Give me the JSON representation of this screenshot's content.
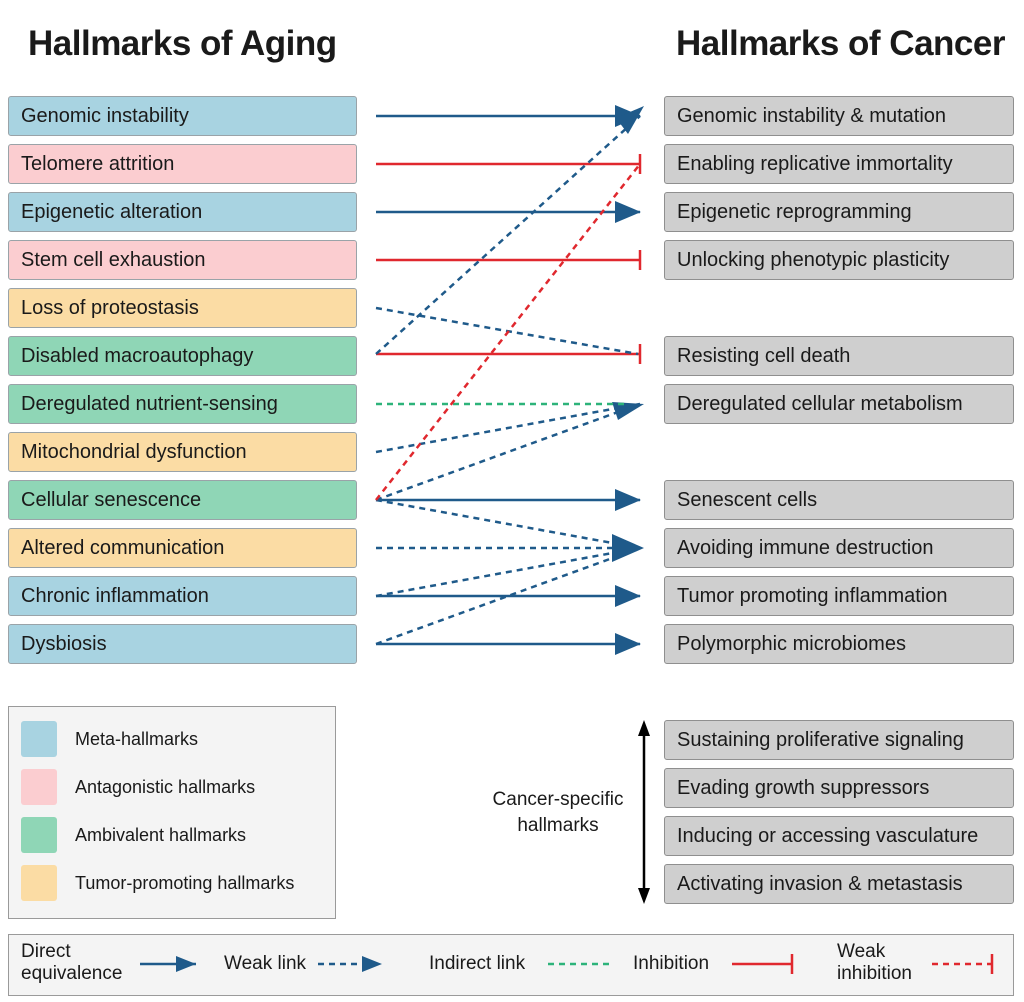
{
  "titles": {
    "aging": "Hallmarks of Aging",
    "cancer": "Hallmarks of Cancer"
  },
  "aging_hallmarks": [
    {
      "label": "Genomic instability",
      "category": "meta"
    },
    {
      "label": "Telomere attrition",
      "category": "antagonistic"
    },
    {
      "label": "Epigenetic alteration",
      "category": "meta"
    },
    {
      "label": "Stem cell exhaustion",
      "category": "antagonistic"
    },
    {
      "label": "Loss of proteostasis",
      "category": "tumor-promoting"
    },
    {
      "label": "Disabled macroautophagy",
      "category": "ambivalent"
    },
    {
      "label": "Deregulated nutrient-sensing",
      "category": "ambivalent"
    },
    {
      "label": "Mitochondrial dysfunction",
      "category": "tumor-promoting"
    },
    {
      "label": "Cellular senescence",
      "category": "ambivalent"
    },
    {
      "label": "Altered communication",
      "category": "tumor-promoting"
    },
    {
      "label": "Chronic inflammation",
      "category": "meta"
    },
    {
      "label": "Dysbiosis",
      "category": "meta"
    }
  ],
  "cancer_hallmarks": [
    "Genomic instability & mutation",
    "Enabling replicative immortality",
    "Epigenetic reprogramming",
    "Unlocking phenotypic plasticity",
    "Resisting cell death",
    "Deregulated cellular metabolism",
    "Senescent cells",
    "Avoiding immune destruction",
    "Tumor promoting inflammation",
    "Polymorphic microbiomes"
  ],
  "cancer_specific": {
    "label_line1": "Cancer-specific",
    "label_line2": "hallmarks",
    "items": [
      "Sustaining proliferative signaling",
      "Evading growth suppressors",
      "Inducing or accessing vasculature",
      "Activating invasion & metastasis"
    ]
  },
  "category_legend": [
    {
      "label": "Meta-hallmarks",
      "color": "#a8d3e1"
    },
    {
      "label": "Antagonistic hallmarks",
      "color": "#fbcdd0"
    },
    {
      "label": "Ambivalent hallmarks",
      "color": "#8fd6b6"
    },
    {
      "label": "Tumor-promoting hallmarks",
      "color": "#fbdca4"
    }
  ],
  "link_legend": {
    "direct_line1": "Direct",
    "direct_line2": "equivalence",
    "weak": "Weak link",
    "indirect": "Indirect link",
    "inhibition": "Inhibition",
    "weak_inhibition_line1": "Weak",
    "weak_inhibition_line2": "inhibition"
  },
  "colors": {
    "blue": "#1f5a8a",
    "red": "#e0282e",
    "green": "#2db37a",
    "red_dashed": "#e0282e"
  }
}
